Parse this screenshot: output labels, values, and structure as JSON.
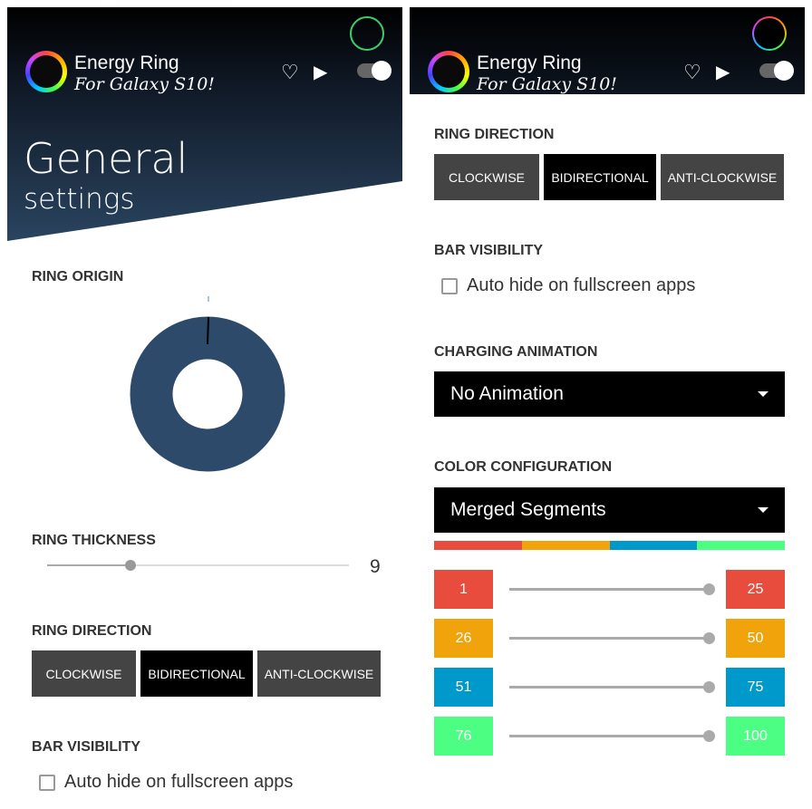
{
  "app": {
    "name": "Energy Ring",
    "subtitle": "For Galaxy S10!"
  },
  "header_icons": [
    "heart-icon",
    "play-store-icon",
    "toggle-switch"
  ],
  "left": {
    "title": "General",
    "subtitle": "settings",
    "ring_origin": {
      "label": "RING ORIGIN",
      "color": "#2e4a6b"
    },
    "ring_thickness": {
      "label": "RING THICKNESS",
      "value": "9",
      "fraction": 0.28
    },
    "ring_direction": {
      "label": "RING DIRECTION",
      "options": [
        "CLOCKWISE",
        "BIDIRECTIONAL",
        "ANTI-CLOCKWISE"
      ],
      "selected": "BIDIRECTIONAL"
    },
    "bar_visibility": {
      "label": "BAR VISIBILITY",
      "checkbox": "Auto hide on fullscreen apps",
      "checked": false
    }
  },
  "right": {
    "ring_direction": {
      "label": "RING DIRECTION",
      "options": [
        "CLOCKWISE",
        "BIDIRECTIONAL",
        "ANTI-CLOCKWISE"
      ],
      "selected": "BIDIRECTIONAL"
    },
    "bar_visibility": {
      "label": "BAR VISIBILITY",
      "checkbox": "Auto hide on fullscreen apps",
      "checked": false
    },
    "charging_animation": {
      "label": "CHARGING ANIMATION",
      "value": "No Animation"
    },
    "color_configuration": {
      "label": "COLOR CONFIGURATION",
      "value": "Merged Segments",
      "segments": [
        {
          "from": "1",
          "to": "25",
          "color": "#e74c3c"
        },
        {
          "from": "26",
          "to": "50",
          "color": "#f0a30a"
        },
        {
          "from": "51",
          "to": "75",
          "color": "#0099cc"
        },
        {
          "from": "76",
          "to": "100",
          "color": "#4cff82"
        }
      ]
    }
  }
}
